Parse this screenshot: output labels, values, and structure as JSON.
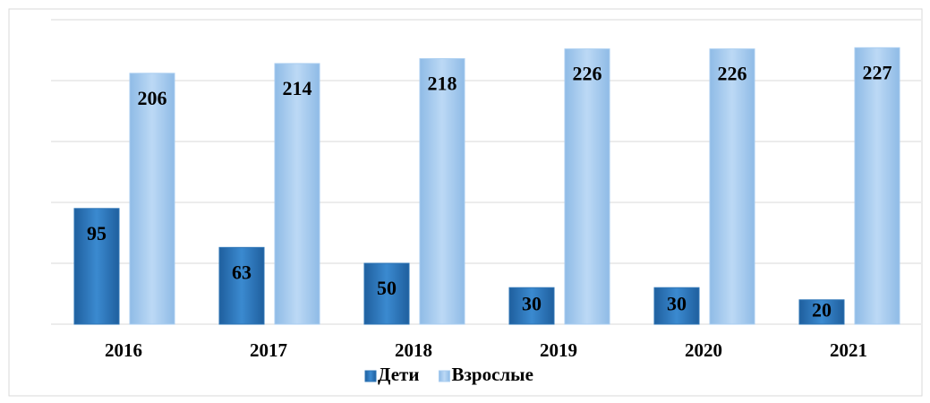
{
  "chart_data": {
    "type": "bar",
    "categories": [
      "2016",
      "2017",
      "2018",
      "2019",
      "2020",
      "2021"
    ],
    "series": [
      {
        "name": "Дети",
        "color": "#2e75b6",
        "values": [
          95,
          63,
          50,
          30,
          30,
          20
        ]
      },
      {
        "name": "Взрослые",
        "color": "#a9cdf0",
        "values": [
          206,
          214,
          218,
          226,
          226,
          227
        ]
      }
    ],
    "ylim": [
      0,
      250
    ],
    "yticks": [
      0,
      50,
      100,
      150,
      200,
      250
    ],
    "grid": true,
    "legend": "bottom"
  }
}
